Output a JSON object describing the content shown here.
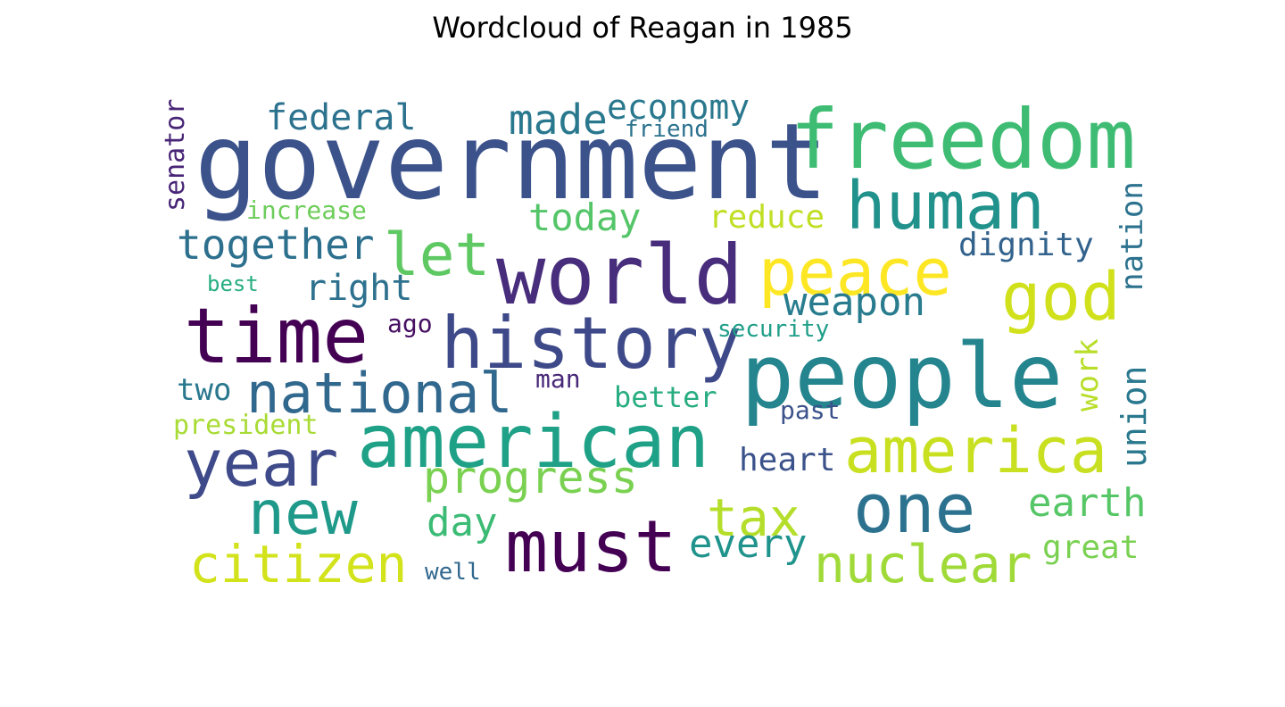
{
  "title": "Wordcloud of Reagan in 1985",
  "words": [
    {
      "text": "government",
      "color": "#3b528b"
    },
    {
      "text": "freedom",
      "color": "#3fbc73"
    },
    {
      "text": "world",
      "color": "#472d7b"
    },
    {
      "text": "people",
      "color": "#25858e"
    },
    {
      "text": "time",
      "color": "#440154"
    },
    {
      "text": "history",
      "color": "#3e4989"
    },
    {
      "text": "american",
      "color": "#1fa187"
    },
    {
      "text": "human",
      "color": "#21918c"
    },
    {
      "text": "peace",
      "color": "#fde725"
    },
    {
      "text": "god",
      "color": "#d0e11c"
    },
    {
      "text": "year",
      "color": "#3e4a89"
    },
    {
      "text": "america",
      "color": "#c8e020"
    },
    {
      "text": "one",
      "color": "#2c728e"
    },
    {
      "text": "must",
      "color": "#440154"
    },
    {
      "text": "national",
      "color": "#31688e"
    },
    {
      "text": "new",
      "color": "#1f9a8a"
    },
    {
      "text": "let",
      "color": "#5ec962"
    },
    {
      "text": "nuclear",
      "color": "#a0da39"
    },
    {
      "text": "citizen",
      "color": "#d2e21b"
    },
    {
      "text": "tax",
      "color": "#b5de2b"
    },
    {
      "text": "progress",
      "color": "#7ad151"
    },
    {
      "text": "together",
      "color": "#2d708e"
    },
    {
      "text": "made",
      "color": "#2a788e"
    },
    {
      "text": "federal",
      "color": "#2c728e"
    },
    {
      "text": "economy",
      "color": "#2a788e"
    },
    {
      "text": "today",
      "color": "#54c568"
    },
    {
      "text": "weapon",
      "color": "#287c8e"
    },
    {
      "text": "right",
      "color": "#2d718e"
    },
    {
      "text": "dignity",
      "color": "#33638d"
    },
    {
      "text": "nation",
      "color": "#2c728e"
    },
    {
      "text": "reduce",
      "color": "#c0df25"
    },
    {
      "text": "union",
      "color": "#2a788e"
    },
    {
      "text": "work",
      "color": "#b8de29"
    },
    {
      "text": "earth",
      "color": "#56c667"
    },
    {
      "text": "every",
      "color": "#20938c"
    },
    {
      "text": "day",
      "color": "#3bbb75"
    },
    {
      "text": "heart",
      "color": "#3b528b"
    },
    {
      "text": "great",
      "color": "#7ad151"
    },
    {
      "text": "better",
      "color": "#27ad81"
    },
    {
      "text": "two",
      "color": "#2a788e"
    },
    {
      "text": "president",
      "color": "#a8db34"
    },
    {
      "text": "senator",
      "color": "#482576"
    },
    {
      "text": "increase",
      "color": "#6ccd5a"
    },
    {
      "text": "best",
      "color": "#27ad81"
    },
    {
      "text": "ago",
      "color": "#471063"
    },
    {
      "text": "security",
      "color": "#1f9e89"
    },
    {
      "text": "man",
      "color": "#482878"
    },
    {
      "text": "past",
      "color": "#3b528b"
    },
    {
      "text": "friend",
      "color": "#2c728e"
    },
    {
      "text": "well",
      "color": "#31688e"
    }
  ]
}
